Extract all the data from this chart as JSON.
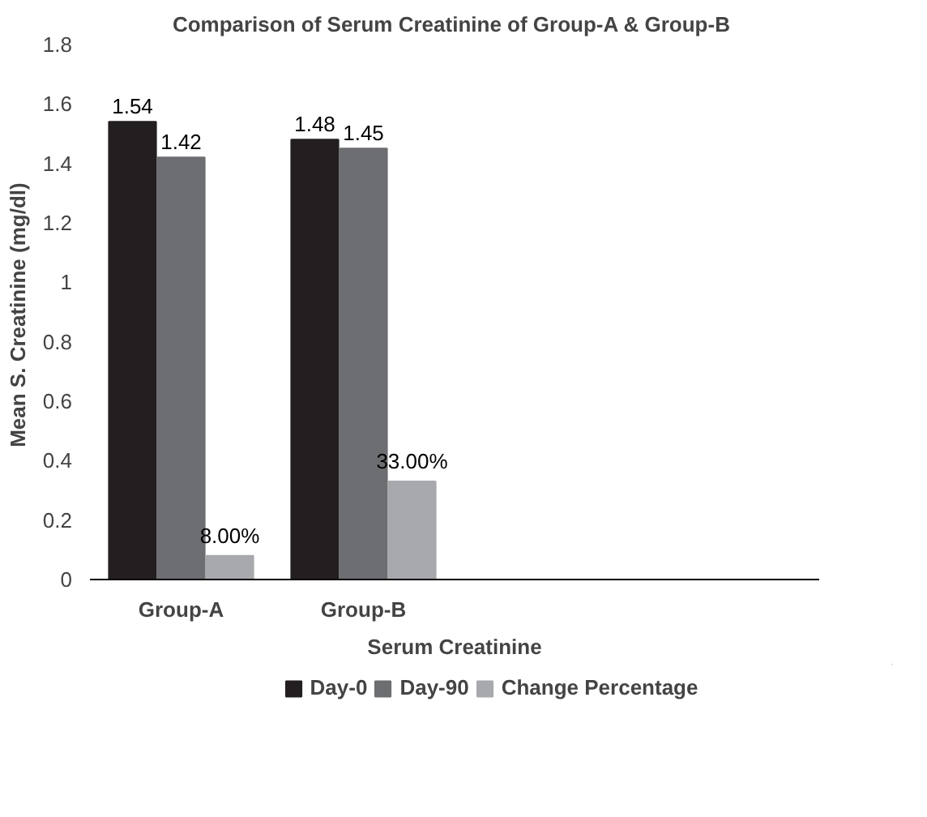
{
  "chart_data": {
    "type": "bar",
    "title": "Comparison  of Serum Creatinine of Group-A & Group-B",
    "xlabel": "Serum Creatinine",
    "ylabel": "Mean S. Creatinine  (mg/dl)",
    "categories": [
      "Group-A",
      "Group-B",
      null,
      null
    ],
    "series": [
      {
        "name": "Day-0",
        "color": "#231f20",
        "values": [
          1.54,
          1.48,
          null,
          null
        ],
        "value_labels": [
          "1.54",
          "1.48",
          null,
          null
        ]
      },
      {
        "name": "Day-90",
        "color": "#6d6e71",
        "values": [
          1.42,
          1.45,
          null,
          null
        ],
        "value_labels": [
          "1.42",
          "1.45",
          null,
          null
        ]
      },
      {
        "name": "Change Percentage",
        "color": "#a7a9ac",
        "values": [
          0.08,
          0.33,
          null,
          null
        ],
        "value_labels": [
          "8.00%",
          "33.00%",
          null,
          null
        ]
      }
    ],
    "ylim": [
      0,
      1.8
    ],
    "yticks": [
      0,
      0.2,
      0.4,
      0.6,
      0.8,
      1,
      1.2,
      1.4,
      1.6,
      1.8
    ],
    "grid": false,
    "legend": "bottom"
  }
}
